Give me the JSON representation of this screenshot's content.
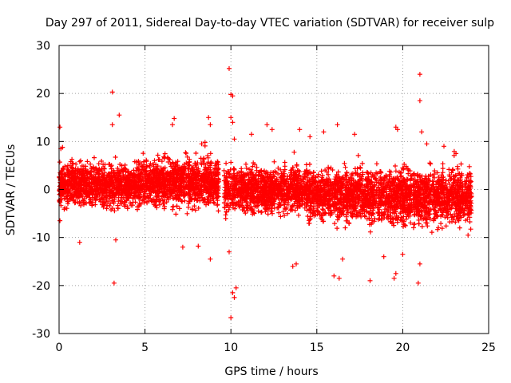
{
  "chart_data": {
    "type": "scatter",
    "title": "Day 297 of 2011, Sidereal Day-to-day VTEC variation (SDTVAR) for receiver sulp",
    "xlabel": "GPS time / hours",
    "ylabel": "SDTVAR / TECUs",
    "xlim": [
      0,
      25
    ],
    "ylim": [
      -30,
      30
    ],
    "x_ticks": [
      0,
      5,
      10,
      15,
      20,
      25
    ],
    "y_ticks": [
      -30,
      -20,
      -10,
      0,
      10,
      20,
      30
    ],
    "x_tick_labels": [
      "0",
      "5",
      "10",
      "15",
      "20",
      "25"
    ],
    "y_tick_labels": [
      "-30",
      "-20",
      "-10",
      "0",
      "10",
      "20",
      "30"
    ],
    "grid": true,
    "marker": "+",
    "series": [
      {
        "name": "SDTVAR",
        "color": "#ff0000",
        "bands": [
          {
            "x_start": 0.0,
            "x_end": 4.5,
            "center": 1.0,
            "spread": 6.5
          },
          {
            "x_start": 4.5,
            "x_end": 9.3,
            "center": 1.5,
            "spread": 7.5
          },
          {
            "x_start": 9.6,
            "x_end": 14.5,
            "center": 0.0,
            "spread": 7.0
          },
          {
            "x_start": 14.5,
            "x_end": 18.0,
            "center": -1.0,
            "spread": 8.0
          },
          {
            "x_start": 18.0,
            "x_end": 24.0,
            "center": -1.5,
            "spread": 8.5
          }
        ],
        "outliers": [
          [
            0.05,
            13.0
          ],
          [
            0.1,
            8.5
          ],
          [
            0.2,
            8.8
          ],
          [
            0.05,
            -6.5
          ],
          [
            1.2,
            -11.0
          ],
          [
            3.1,
            20.3
          ],
          [
            3.2,
            -19.5
          ],
          [
            3.5,
            15.5
          ],
          [
            3.1,
            13.5
          ],
          [
            3.3,
            -10.5
          ],
          [
            6.7,
            14.8
          ],
          [
            6.6,
            13.5
          ],
          [
            7.2,
            -12.0
          ],
          [
            8.1,
            -11.8
          ],
          [
            8.3,
            9.5
          ],
          [
            8.7,
            15.0
          ],
          [
            8.8,
            13.5
          ],
          [
            8.8,
            -14.5
          ],
          [
            9.9,
            25.2
          ],
          [
            10.0,
            19.8
          ],
          [
            10.1,
            19.5
          ],
          [
            10.0,
            15.0
          ],
          [
            10.1,
            14.0
          ],
          [
            10.2,
            10.5
          ],
          [
            9.9,
            -13.0
          ],
          [
            10.1,
            -21.5
          ],
          [
            10.2,
            -22.5
          ],
          [
            10.0,
            -26.7
          ],
          [
            10.3,
            -20.5
          ],
          [
            11.2,
            11.5
          ],
          [
            12.1,
            13.5
          ],
          [
            12.4,
            12.5
          ],
          [
            13.6,
            -16.0
          ],
          [
            13.8,
            -15.5
          ],
          [
            14.0,
            12.5
          ],
          [
            14.6,
            11.0
          ],
          [
            15.4,
            12.0
          ],
          [
            16.0,
            -18.0
          ],
          [
            16.3,
            -18.5
          ],
          [
            16.2,
            13.5
          ],
          [
            16.5,
            -14.5
          ],
          [
            17.2,
            11.5
          ],
          [
            18.1,
            -19.0
          ],
          [
            18.9,
            -14.0
          ],
          [
            19.6,
            13.0
          ],
          [
            19.7,
            12.5
          ],
          [
            19.6,
            -17.5
          ],
          [
            19.5,
            -18.5
          ],
          [
            20.0,
            -13.5
          ],
          [
            21.0,
            24.0
          ],
          [
            21.0,
            18.5
          ],
          [
            21.1,
            12.0
          ],
          [
            20.9,
            -19.5
          ],
          [
            21.0,
            -15.5
          ],
          [
            21.4,
            9.5
          ],
          [
            22.4,
            9.0
          ],
          [
            23.1,
            7.5
          ],
          [
            23.8,
            -9.5
          ]
        ]
      }
    ]
  }
}
